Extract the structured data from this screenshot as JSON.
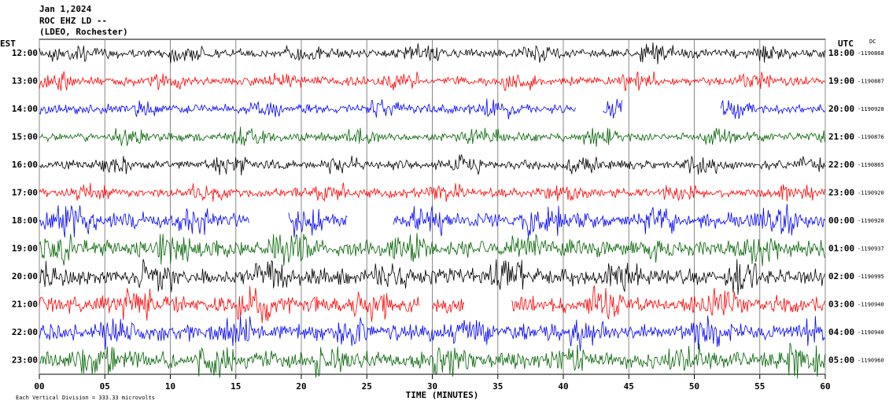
{
  "header": {
    "date": "Jan 1,2024",
    "station": "ROC EHZ LD --",
    "network": "(LDEO, Rochester)"
  },
  "left_label": "EST",
  "right_label": "UTC",
  "dc_label": "DC",
  "traces": [
    {
      "est": "12:00",
      "utc": "18:00",
      "dc": "-1190868",
      "color": "#000000"
    },
    {
      "est": "13:00",
      "utc": "19:00",
      "dc": "-1190887",
      "color": "#ff0000"
    },
    {
      "est": "14:00",
      "utc": "20:00",
      "dc": "-1190928",
      "color": "#0000ff"
    },
    {
      "est": "15:00",
      "utc": "21:00",
      "dc": "-1190876",
      "color": "#006400"
    },
    {
      "est": "16:00",
      "utc": "22:00",
      "dc": "-1190865",
      "color": "#000000"
    },
    {
      "est": "17:00",
      "utc": "23:00",
      "dc": "-1190920",
      "color": "#ff0000"
    },
    {
      "est": "18:00",
      "utc": "00:00",
      "dc": "-1190920",
      "color": "#0000ff"
    },
    {
      "est": "19:00",
      "utc": "01:00",
      "dc": "-1190937",
      "color": "#006400"
    },
    {
      "est": "20:00",
      "utc": "02:00",
      "dc": "-1190995",
      "color": "#000000"
    },
    {
      "est": "21:00",
      "utc": "03:00",
      "dc": "-1190940",
      "color": "#ff0000"
    },
    {
      "est": "22:00",
      "utc": "04:00",
      "dc": "-1190940",
      "color": "#0000ff"
    },
    {
      "est": "23:00",
      "utc": "05:00",
      "dc": "-1190960",
      "color": "#006400"
    }
  ],
  "x_axis": {
    "label": "TIME (MINUTES)",
    "xlim": [
      0,
      60
    ],
    "ticks": [
      {
        "value": 0,
        "label": "00"
      },
      {
        "value": 5,
        "label": "05"
      },
      10,
      15,
      20,
      25,
      30,
      35,
      40,
      45,
      50,
      55,
      60
    ]
  },
  "footnote": "Each Vertical Division =  333.33 microvolts"
}
